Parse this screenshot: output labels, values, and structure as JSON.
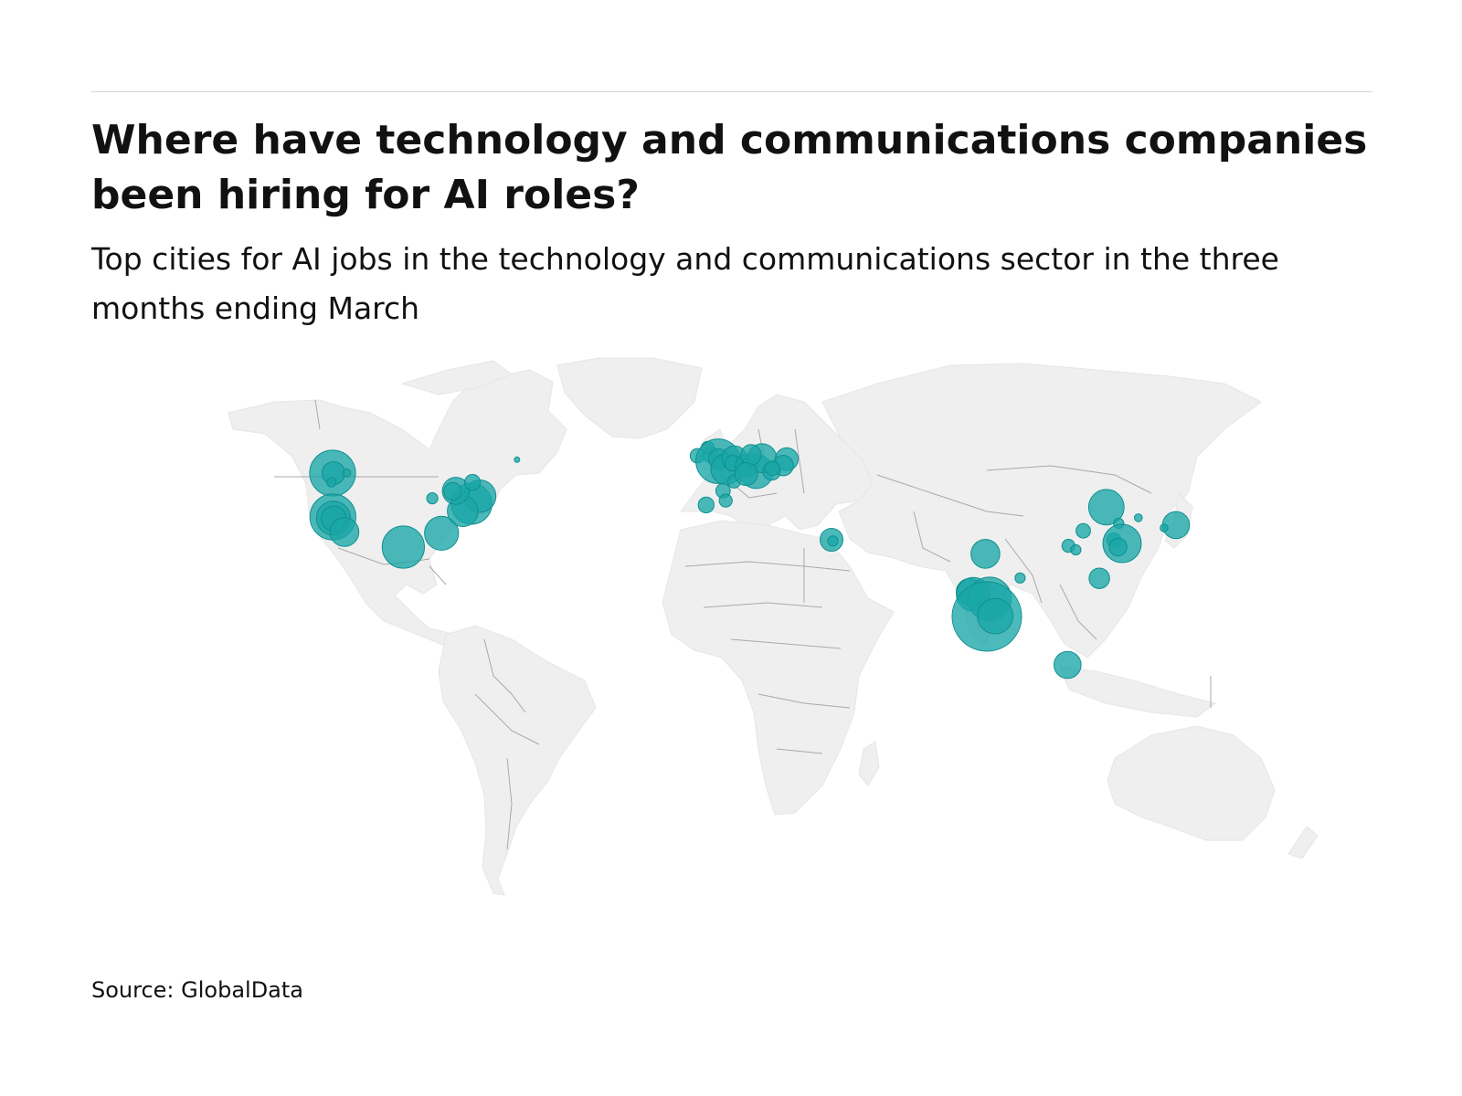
{
  "title": "Where have technology and communications companies been hiring for AI roles?",
  "subtitle": "Top cities for AI jobs in the technology and communications sector in the three months ending March",
  "source": "Source: GlobalData",
  "colors": {
    "bubble": "#1aa6a6",
    "dense_overlap": "#0b3b3b",
    "land": "#efefef",
    "border": "#a9a9a9"
  },
  "chart_data": {
    "type": "bubble-map",
    "title": "Where have technology and communications companies been hiring for AI roles?",
    "subtitle": "Top cities for AI jobs in the technology and communications sector in the three months ending March",
    "source": "GlobalData",
    "points": [
      {
        "lat": 47.6,
        "lon": -122.3,
        "size": 100
      },
      {
        "lat": 47.6,
        "lon": -122.0,
        "size": 25
      },
      {
        "lat": 45.5,
        "lon": -122.7,
        "size": 4
      },
      {
        "lat": 47.7,
        "lon": -117.4,
        "size": 3
      },
      {
        "lat": 37.7,
        "lon": -122.2,
        "size": 100
      },
      {
        "lat": 37.4,
        "lon": -122.0,
        "size": 55
      },
      {
        "lat": 37.3,
        "lon": -121.9,
        "size": 30
      },
      {
        "lat": 34.0,
        "lon": -118.2,
        "size": 40
      },
      {
        "lat": 30.3,
        "lon": -97.7,
        "size": 85
      },
      {
        "lat": 33.7,
        "lon": -84.4,
        "size": 55
      },
      {
        "lat": 41.9,
        "lon": -87.6,
        "size": 6
      },
      {
        "lat": 40.7,
        "lon": -74.0,
        "size": 80
      },
      {
        "lat": 42.4,
        "lon": -71.1,
        "size": 50
      },
      {
        "lat": 39.0,
        "lon": -77.0,
        "size": 45
      },
      {
        "lat": 43.6,
        "lon": -79.4,
        "size": 35
      },
      {
        "lat": 43.5,
        "lon": -80.5,
        "size": 15
      },
      {
        "lat": 45.5,
        "lon": -73.6,
        "size": 12
      },
      {
        "lat": 52.0,
        "lon": -60.0,
        "size": 1
      },
      {
        "lat": 53.3,
        "lon": -6.3,
        "size": 10
      },
      {
        "lat": 55.9,
        "lon": -3.2,
        "size": 8
      },
      {
        "lat": 53.5,
        "lon": -2.2,
        "size": 12
      },
      {
        "lat": 51.5,
        "lon": -0.1,
        "size": 95
      },
      {
        "lat": 52.2,
        "lon": 0.1,
        "size": 20
      },
      {
        "lat": 48.9,
        "lon": 2.4,
        "size": 45
      },
      {
        "lat": 45.7,
        "lon": 4.8,
        "size": 8
      },
      {
        "lat": 43.6,
        "lon": 1.4,
        "size": 10
      },
      {
        "lat": 40.4,
        "lon": -3.7,
        "size": 12
      },
      {
        "lat": 41.4,
        "lon": 2.2,
        "size": 8
      },
      {
        "lat": 52.4,
        "lon": 4.9,
        "size": 30
      },
      {
        "lat": 50.8,
        "lon": 4.4,
        "size": 12
      },
      {
        "lat": 50.1,
        "lon": 8.7,
        "size": 25
      },
      {
        "lat": 48.1,
        "lon": 11.6,
        "size": 55
      },
      {
        "lat": 52.5,
        "lon": 13.4,
        "size": 40
      },
      {
        "lat": 53.6,
        "lon": 10.0,
        "size": 20
      },
      {
        "lat": 47.4,
        "lon": 8.5,
        "size": 25
      },
      {
        "lat": 48.2,
        "lon": 16.4,
        "size": 15
      },
      {
        "lat": 52.2,
        "lon": 21.0,
        "size": 25
      },
      {
        "lat": 50.1,
        "lon": 19.9,
        "size": 20
      },
      {
        "lat": 49.2,
        "lon": 16.6,
        "size": 10
      },
      {
        "lat": 32.1,
        "lon": 34.8,
        "size": 25
      },
      {
        "lat": 31.8,
        "lon": 35.2,
        "size": 5
      },
      {
        "lat": 28.6,
        "lon": 77.2,
        "size": 40
      },
      {
        "lat": 19.1,
        "lon": 72.9,
        "size": 35
      },
      {
        "lat": 18.5,
        "lon": 73.9,
        "size": 55
      },
      {
        "lat": 17.4,
        "lon": 78.5,
        "size": 90
      },
      {
        "lat": 13.0,
        "lon": 77.6,
        "size": 230
      },
      {
        "lat": 13.1,
        "lon": 80.3,
        "size": 60
      },
      {
        "lat": 22.6,
        "lon": 88.4,
        "size": 5
      },
      {
        "lat": 1.35,
        "lon": 103.8,
        "size": 35
      },
      {
        "lat": 39.9,
        "lon": 116.4,
        "size": 60
      },
      {
        "lat": 30.6,
        "lon": 104.1,
        "size": 8
      },
      {
        "lat": 34.3,
        "lon": 108.9,
        "size": 10
      },
      {
        "lat": 36.1,
        "lon": 120.4,
        "size": 5
      },
      {
        "lat": 32.0,
        "lon": 118.8,
        "size": 10
      },
      {
        "lat": 31.2,
        "lon": 121.5,
        "size": 70
      },
      {
        "lat": 30.3,
        "lon": 120.2,
        "size": 15
      },
      {
        "lat": 29.6,
        "lon": 106.5,
        "size": 5
      },
      {
        "lat": 22.5,
        "lon": 114.1,
        "size": 20
      },
      {
        "lat": 35.7,
        "lon": 139.7,
        "size": 35
      },
      {
        "lat": 35.0,
        "lon": 135.7,
        "size": 3
      },
      {
        "lat": 37.5,
        "lon": 127.0,
        "size": 3
      }
    ]
  }
}
